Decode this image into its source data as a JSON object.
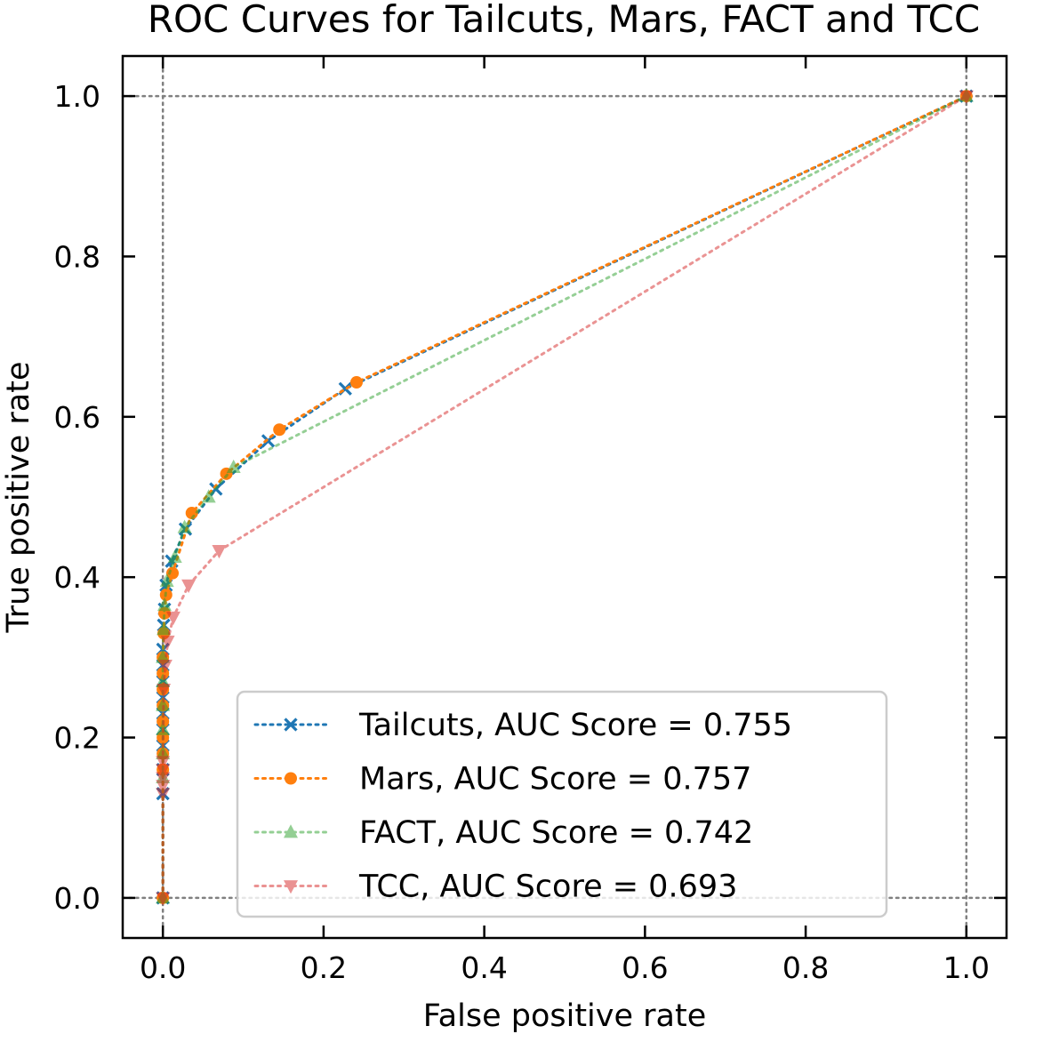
{
  "chart_data": {
    "type": "line",
    "title": "ROC Curves for Tailcuts, Mars, FACT and TCC",
    "xlabel": "False positive rate",
    "ylabel": "True positive rate",
    "xlim": [
      -0.05,
      1.05
    ],
    "ylim": [
      -0.05,
      1.05
    ],
    "xticks": [
      "0.0",
      "0.2",
      "0.4",
      "0.6",
      "0.8",
      "1.0"
    ],
    "yticks": [
      "0.0",
      "0.2",
      "0.4",
      "0.6",
      "0.8",
      "1.0"
    ],
    "reference_lines": {
      "x": [
        0,
        1
      ],
      "y": [
        0,
        1
      ],
      "style": "dotted",
      "color": "#808080"
    },
    "legend_position": "lower-right",
    "series": [
      {
        "name": "Tailcuts, AUC Score = 0.755",
        "color": "#1f77b4",
        "marker": "x",
        "alpha": 1.0,
        "x": [
          0,
          0,
          0,
          0,
          0,
          0,
          0,
          0,
          0,
          0,
          0.001,
          0.002,
          0.004,
          0.011,
          0.028,
          0.066,
          0.131,
          0.227,
          1.0
        ],
        "y": [
          0,
          0.13,
          0.16,
          0.19,
          0.21,
          0.23,
          0.25,
          0.27,
          0.29,
          0.31,
          0.34,
          0.36,
          0.39,
          0.42,
          0.46,
          0.51,
          0.57,
          0.635,
          1.0
        ]
      },
      {
        "name": "Mars, AUC Score = 0.757",
        "color": "#ff7f0e",
        "marker": "circle",
        "alpha": 1.0,
        "x": [
          0,
          0,
          0,
          0,
          0,
          0,
          0,
          0,
          0,
          0.001,
          0.002,
          0.004,
          0.012,
          0.036,
          0.079,
          0.145,
          0.241,
          1.0
        ],
        "y": [
          0,
          0.16,
          0.18,
          0.2,
          0.22,
          0.24,
          0.26,
          0.28,
          0.3,
          0.33,
          0.355,
          0.378,
          0.405,
          0.48,
          0.529,
          0.584,
          0.643,
          1.0
        ]
      },
      {
        "name": "FACT, AUC Score = 0.742",
        "color": "#2ca02c",
        "marker": "triangle-up",
        "alpha": 0.5,
        "x": [
          0,
          0,
          0,
          0,
          0,
          0,
          0,
          0.001,
          0.002,
          0.005,
          0.015,
          0.027,
          0.057,
          0.088,
          1.0
        ],
        "y": [
          0,
          0.15,
          0.18,
          0.21,
          0.24,
          0.27,
          0.3,
          0.335,
          0.365,
          0.395,
          0.425,
          0.462,
          0.5,
          0.537,
          1.0
        ]
      },
      {
        "name": "TCC, AUC Score = 0.693",
        "color": "#d62728",
        "marker": "triangle-down",
        "alpha": 0.5,
        "x": [
          0,
          0,
          0,
          0,
          0,
          0,
          0.001,
          0.003,
          0.006,
          0.013,
          0.032,
          0.07,
          1.0
        ],
        "y": [
          0,
          0.13,
          0.14,
          0.15,
          0.16,
          0.17,
          0.26,
          0.29,
          0.32,
          0.35,
          0.39,
          0.433,
          1.0
        ]
      }
    ]
  }
}
